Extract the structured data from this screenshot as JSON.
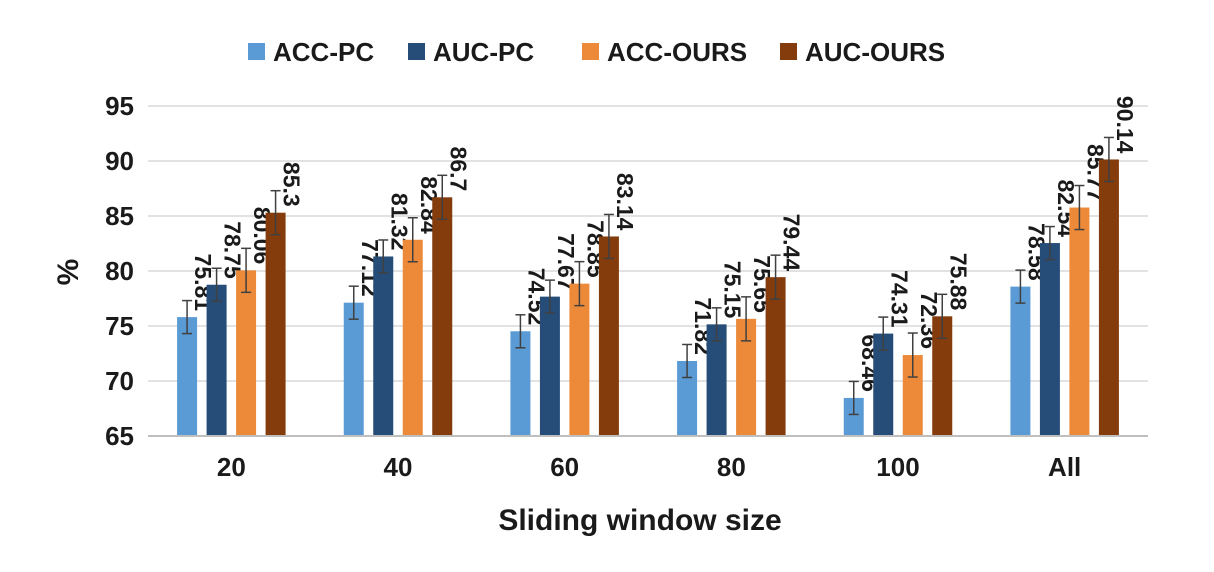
{
  "chart_data": {
    "type": "bar",
    "title": "",
    "xlabel": "Sliding window size",
    "ylabel": "%",
    "ylim": [
      65,
      95
    ],
    "yticks": [
      65,
      70,
      75,
      80,
      85,
      90,
      95
    ],
    "grid": true,
    "legend_position": "top",
    "categories": [
      "20",
      "40",
      "60",
      "80",
      "100",
      "All"
    ],
    "series": [
      {
        "name": "ACC-PC",
        "color": "#5b9bd5",
        "values": [
          75.81,
          77.12,
          74.52,
          71.82,
          68.46,
          78.58
        ],
        "labels": [
          "75.81",
          "77.12",
          "74.52",
          "71.82",
          "68.46",
          "78.58"
        ]
      },
      {
        "name": "AUC-PC",
        "color": "#264d78",
        "values": [
          78.75,
          81.32,
          77.67,
          75.15,
          74.31,
          82.54
        ],
        "labels": [
          "78.75",
          "81.32",
          "77.67",
          "75.15",
          "74.31",
          "82.54"
        ]
      },
      {
        "name": "ACC-OURS",
        "color": "#ed8a3a",
        "values": [
          80.06,
          82.84,
          78.85,
          75.65,
          72.36,
          85.77
        ],
        "labels": [
          "80.06",
          "82.84",
          "78.85",
          "75.65",
          "72.36",
          "85.77"
        ]
      },
      {
        "name": "AUC-OURS",
        "color": "#843c0c",
        "values": [
          85.3,
          86.7,
          83.14,
          79.44,
          75.88,
          90.14
        ],
        "labels": [
          "85.3",
          "86.7",
          "83.14",
          "79.44",
          "75.88",
          "90.14"
        ]
      }
    ],
    "error_bars": [
      [
        1.5,
        1.5,
        1.5,
        1.5,
        1.5,
        1.5
      ],
      [
        1.5,
        1.5,
        1.5,
        1.5,
        1.5,
        1.5
      ],
      [
        2.0,
        2.0,
        2.0,
        2.0,
        2.0,
        2.0
      ],
      [
        2.0,
        2.0,
        2.0,
        2.0,
        2.0,
        2.0
      ]
    ]
  }
}
